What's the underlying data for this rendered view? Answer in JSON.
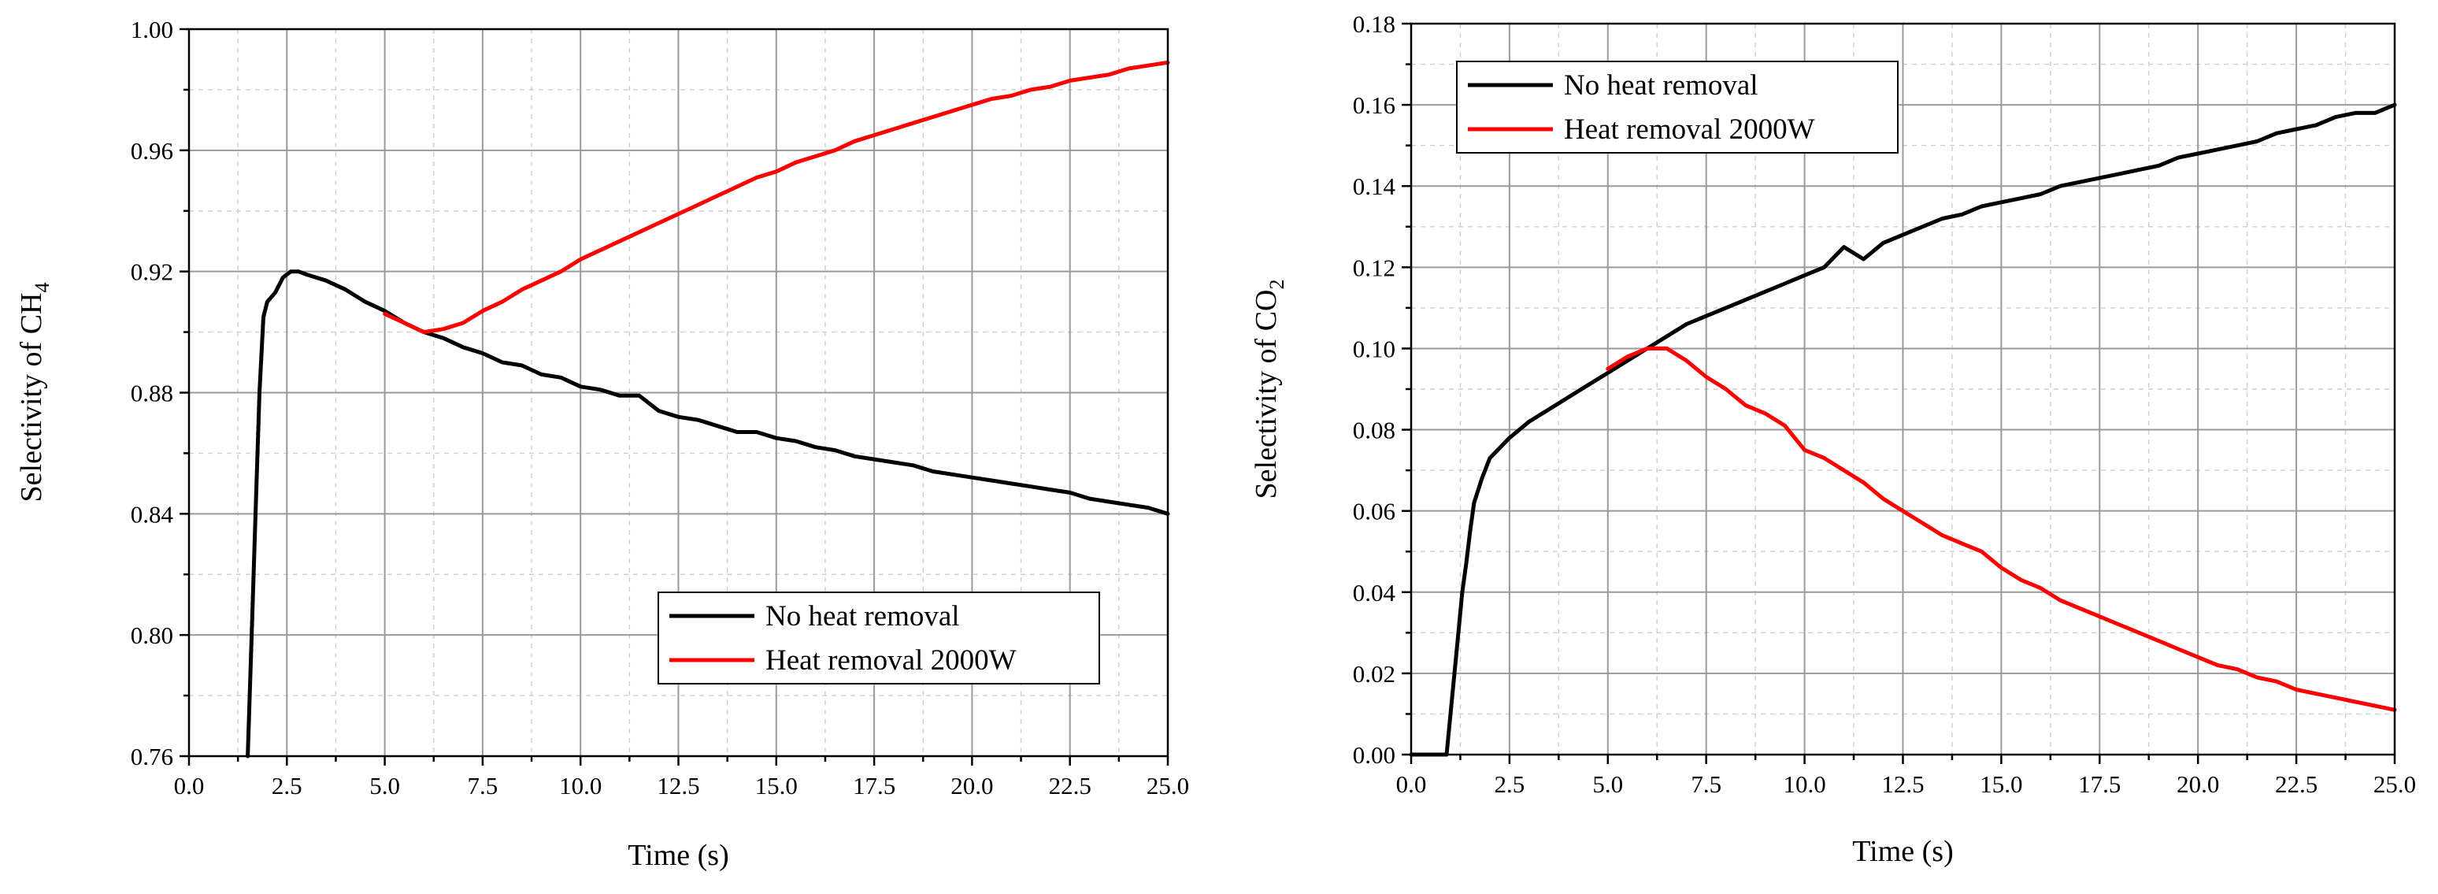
{
  "chart_data": [
    {
      "type": "line",
      "ylabel_main": "Selectivity of CH",
      "ylabel_sub": "4",
      "xlabel": "Time (s)",
      "xlim": [
        0,
        25
      ],
      "ylim": [
        0.76,
        1.0
      ],
      "xticks": [
        "0.0",
        "2.5",
        "5.0",
        "7.5",
        "10.0",
        "12.5",
        "15.0",
        "17.5",
        "20.0",
        "22.5",
        "25.0"
      ],
      "yticks": [
        "0.76",
        "0.80",
        "0.84",
        "0.88",
        "0.92",
        "0.96",
        "1.00"
      ],
      "legend_position": "lower-right",
      "grid": true,
      "series": [
        {
          "name": "No heat removal",
          "color": "#000000",
          "x": [
            1.5,
            1.6,
            1.7,
            1.8,
            1.9,
            2.0,
            2.2,
            2.4,
            2.6,
            2.8,
            3.0,
            3.5,
            4.0,
            4.5,
            5.0,
            5.5,
            6.0,
            6.5,
            7.0,
            7.5,
            8.0,
            8.5,
            9.0,
            9.5,
            10.0,
            10.5,
            11.0,
            11.5,
            12.0,
            12.5,
            13.0,
            13.5,
            14.0,
            14.5,
            15.0,
            15.5,
            16.0,
            16.5,
            17.0,
            17.5,
            18.0,
            18.5,
            19.0,
            19.5,
            20.0,
            20.5,
            21.0,
            21.5,
            22.0,
            22.5,
            23.0,
            23.5,
            24.0,
            24.5,
            25.0
          ],
          "y": [
            0.76,
            0.8,
            0.84,
            0.88,
            0.905,
            0.91,
            0.913,
            0.918,
            0.92,
            0.92,
            0.919,
            0.917,
            0.914,
            0.91,
            0.907,
            0.903,
            0.9,
            0.898,
            0.895,
            0.893,
            0.89,
            0.889,
            0.886,
            0.885,
            0.882,
            0.881,
            0.879,
            0.879,
            0.874,
            0.872,
            0.871,
            0.869,
            0.867,
            0.867,
            0.865,
            0.864,
            0.862,
            0.861,
            0.859,
            0.858,
            0.857,
            0.856,
            0.854,
            0.853,
            0.852,
            0.851,
            0.85,
            0.849,
            0.848,
            0.847,
            0.845,
            0.844,
            0.843,
            0.842,
            0.84
          ]
        },
        {
          "name": "Heat removal 2000W",
          "color": "#ff0000",
          "x": [
            5.0,
            5.5,
            6.0,
            6.5,
            7.0,
            7.5,
            8.0,
            8.5,
            9.0,
            9.5,
            10.0,
            10.5,
            11.0,
            11.5,
            12.0,
            12.5,
            13.0,
            13.5,
            14.0,
            14.5,
            15.0,
            15.5,
            16.0,
            16.5,
            17.0,
            17.5,
            18.0,
            18.5,
            19.0,
            19.5,
            20.0,
            20.5,
            21.0,
            21.5,
            22.0,
            22.5,
            23.0,
            23.5,
            24.0,
            24.5,
            25.0
          ],
          "y": [
            0.906,
            0.903,
            0.9,
            0.901,
            0.903,
            0.907,
            0.91,
            0.914,
            0.917,
            0.92,
            0.924,
            0.927,
            0.93,
            0.933,
            0.936,
            0.939,
            0.942,
            0.945,
            0.948,
            0.951,
            0.953,
            0.956,
            0.958,
            0.96,
            0.963,
            0.965,
            0.967,
            0.969,
            0.971,
            0.973,
            0.975,
            0.977,
            0.978,
            0.98,
            0.981,
            0.983,
            0.984,
            0.985,
            0.987,
            0.988,
            0.989
          ]
        }
      ]
    },
    {
      "type": "line",
      "ylabel_main": "Selectivity of CO",
      "ylabel_sub": "2",
      "xlabel": "Time (s)",
      "xlim": [
        0,
        25
      ],
      "ylim": [
        0,
        0.18
      ],
      "xticks": [
        "0.0",
        "2.5",
        "5.0",
        "7.5",
        "10.0",
        "12.5",
        "15.0",
        "17.5",
        "20.0",
        "22.5",
        "25.0"
      ],
      "yticks": [
        "0.00",
        "0.02",
        "0.04",
        "0.06",
        "0.08",
        "0.10",
        "0.12",
        "0.14",
        "0.16",
        "0.18"
      ],
      "legend_position": "top-left",
      "grid": true,
      "series": [
        {
          "name": "No heat removal",
          "color": "#000000",
          "x": [
            0.0,
            0.9,
            1.0,
            1.1,
            1.2,
            1.3,
            1.4,
            1.5,
            1.6,
            1.8,
            2.0,
            2.5,
            3.0,
            3.5,
            4.0,
            4.5,
            5.0,
            5.5,
            6.0,
            6.5,
            7.0,
            7.5,
            8.0,
            8.5,
            9.0,
            9.5,
            10.0,
            10.5,
            11.0,
            11.5,
            12.0,
            12.5,
            13.0,
            13.5,
            14.0,
            14.5,
            15.0,
            15.5,
            16.0,
            16.5,
            17.0,
            17.5,
            18.0,
            18.5,
            19.0,
            19.5,
            20.0,
            20.5,
            21.0,
            21.5,
            22.0,
            22.5,
            23.0,
            23.5,
            24.0,
            24.5,
            25.0
          ],
          "y": [
            0.0,
            0.0,
            0.01,
            0.02,
            0.03,
            0.04,
            0.047,
            0.055,
            0.062,
            0.068,
            0.073,
            0.078,
            0.082,
            0.085,
            0.088,
            0.091,
            0.094,
            0.097,
            0.1,
            0.103,
            0.106,
            0.108,
            0.11,
            0.112,
            0.114,
            0.116,
            0.118,
            0.12,
            0.125,
            0.122,
            0.126,
            0.128,
            0.13,
            0.132,
            0.133,
            0.135,
            0.136,
            0.137,
            0.138,
            0.14,
            0.141,
            0.142,
            0.143,
            0.144,
            0.145,
            0.147,
            0.148,
            0.149,
            0.15,
            0.151,
            0.153,
            0.154,
            0.155,
            0.157,
            0.158,
            0.158,
            0.16
          ]
        },
        {
          "name": "Heat removal 2000W",
          "color": "#ff0000",
          "x": [
            5.0,
            5.5,
            6.0,
            6.5,
            7.0,
            7.5,
            8.0,
            8.5,
            9.0,
            9.5,
            10.0,
            10.5,
            11.0,
            11.5,
            12.0,
            12.5,
            13.0,
            13.5,
            14.0,
            14.5,
            15.0,
            15.5,
            16.0,
            16.5,
            17.0,
            17.5,
            18.0,
            18.5,
            19.0,
            19.5,
            20.0,
            20.5,
            21.0,
            21.5,
            22.0,
            22.5,
            23.0,
            23.5,
            24.0,
            24.5,
            25.0
          ],
          "y": [
            0.095,
            0.098,
            0.1,
            0.1,
            0.097,
            0.093,
            0.09,
            0.086,
            0.084,
            0.081,
            0.075,
            0.073,
            0.07,
            0.067,
            0.063,
            0.06,
            0.057,
            0.054,
            0.052,
            0.05,
            0.046,
            0.043,
            0.041,
            0.038,
            0.036,
            0.034,
            0.032,
            0.03,
            0.028,
            0.026,
            0.024,
            0.022,
            0.021,
            0.019,
            0.018,
            0.016,
            0.015,
            0.014,
            0.013,
            0.012,
            0.011
          ]
        }
      ]
    }
  ]
}
